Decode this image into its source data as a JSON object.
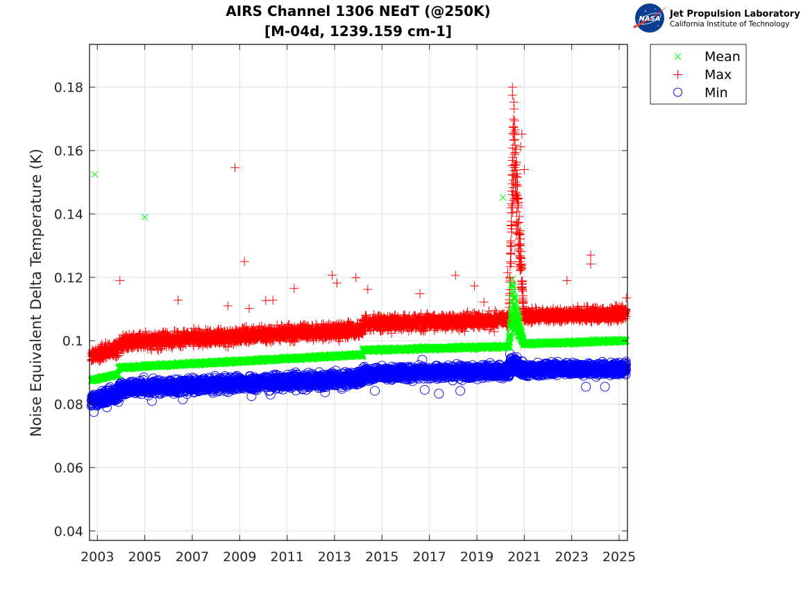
{
  "chart_data": {
    "type": "scatter",
    "title": [
      "AIRS Channel 1306 NEdT (@250K)",
      "[M-04d, 1239.159 cm-1]"
    ],
    "xlabel": "",
    "ylabel": "Noise Equivalent Delta Temperature (K)",
    "xlim": [
      2002.67,
      2025.35
    ],
    "ylim": [
      0.037,
      0.1935
    ],
    "xticks": [
      2003,
      2005,
      2007,
      2009,
      2011,
      2013,
      2015,
      2017,
      2019,
      2021,
      2023,
      2025
    ],
    "xtick_labels": [
      "2003",
      "2005",
      "2007",
      "2009",
      "2011",
      "2013",
      "2015",
      "2017",
      "2019",
      "2021",
      "2023",
      "2025"
    ],
    "yticks": [
      0.04,
      0.06,
      0.08,
      0.1,
      0.12,
      0.14,
      0.16,
      0.18
    ],
    "ytick_labels": [
      "0.04",
      "0.06",
      "0.08",
      "0.1",
      "0.12",
      "0.14",
      "0.16",
      "0.18"
    ],
    "grid": true,
    "legend_position": "outside-top-right",
    "series": [
      {
        "name": "Mean",
        "marker": "x",
        "color": "#00ff00",
        "segments": [
          {
            "x0": 2002.75,
            "x1": 2003.9,
            "y0": 0.0875,
            "y1": 0.0895,
            "spread": 0.0005
          },
          {
            "x0": 2003.9,
            "x1": 2014.2,
            "y0": 0.0915,
            "y1": 0.0956,
            "spread": 0.0005
          },
          {
            "x0": 2014.2,
            "x1": 2020.35,
            "y0": 0.097,
            "y1": 0.0982,
            "spread": 0.0005
          },
          {
            "x0": 2021.0,
            "x1": 2025.3,
            "y0": 0.099,
            "y1": 0.1,
            "spread": 0.0005
          }
        ],
        "spike": {
          "x0": 2020.35,
          "x1": 2021.0,
          "peak_x": 2020.5,
          "base": 0.0985,
          "peak": 0.122
        },
        "outliers": [
          {
            "x": 2002.9,
            "y": 0.1525
          },
          {
            "x": 2005.0,
            "y": 0.139
          },
          {
            "x": 2020.1,
            "y": 0.1452
          },
          {
            "x": 2023.9,
            "y": 0.1005
          },
          {
            "x": 2020.45,
            "y": 0.1175
          },
          {
            "x": 2020.5,
            "y": 0.1195
          }
        ]
      },
      {
        "name": "Max",
        "marker": "+",
        "color": "#ff0000",
        "segments": [
          {
            "x0": 2002.75,
            "x1": 2003.9,
            "y0": 0.0955,
            "y1": 0.0972,
            "spread": 0.0022
          },
          {
            "x0": 2003.9,
            "x1": 2014.2,
            "y0": 0.0995,
            "y1": 0.1035,
            "spread": 0.0022
          },
          {
            "x0": 2014.2,
            "x1": 2020.35,
            "y0": 0.1055,
            "y1": 0.1065,
            "spread": 0.0022
          },
          {
            "x0": 2021.0,
            "x1": 2025.3,
            "y0": 0.1077,
            "y1": 0.1085,
            "spread": 0.002
          }
        ],
        "spike": {
          "x0": 2020.35,
          "x1": 2021.0,
          "peak_x": 2020.55,
          "base": 0.106,
          "peak": 0.178
        },
        "outliers": [
          {
            "x": 2003.95,
            "y": 0.119
          },
          {
            "x": 2006.4,
            "y": 0.1128
          },
          {
            "x": 2008.8,
            "y": 0.1546
          },
          {
            "x": 2009.2,
            "y": 0.125
          },
          {
            "x": 2008.5,
            "y": 0.111
          },
          {
            "x": 2009.4,
            "y": 0.1102
          },
          {
            "x": 2010.1,
            "y": 0.1127
          },
          {
            "x": 2010.4,
            "y": 0.1128
          },
          {
            "x": 2011.3,
            "y": 0.1165
          },
          {
            "x": 2012.9,
            "y": 0.1207
          },
          {
            "x": 2013.1,
            "y": 0.1182
          },
          {
            "x": 2013.9,
            "y": 0.1199
          },
          {
            "x": 2014.4,
            "y": 0.1162
          },
          {
            "x": 2016.6,
            "y": 0.1148
          },
          {
            "x": 2018.1,
            "y": 0.1206
          },
          {
            "x": 2018.9,
            "y": 0.1173
          },
          {
            "x": 2019.3,
            "y": 0.1122
          },
          {
            "x": 2020.3,
            "y": 0.1215
          },
          {
            "x": 2020.5,
            "y": 0.18
          },
          {
            "x": 2020.5,
            "y": 0.1775
          },
          {
            "x": 2020.9,
            "y": 0.1652
          },
          {
            "x": 2020.85,
            "y": 0.1612
          },
          {
            "x": 2021.0,
            "y": 0.154
          },
          {
            "x": 2020.9,
            "y": 0.123
          },
          {
            "x": 2022.8,
            "y": 0.119
          },
          {
            "x": 2023.8,
            "y": 0.127
          },
          {
            "x": 2023.8,
            "y": 0.1242
          },
          {
            "x": 2025.3,
            "y": 0.1135
          },
          {
            "x": 2013.2,
            "y": 0.0998
          }
        ]
      },
      {
        "name": "Min",
        "marker": "o",
        "color": "#0000ff",
        "segments": [
          {
            "x0": 2002.75,
            "x1": 2003.9,
            "y0": 0.081,
            "y1": 0.083,
            "spread": 0.0022
          },
          {
            "x0": 2003.9,
            "x1": 2014.2,
            "y0": 0.085,
            "y1": 0.088,
            "spread": 0.002
          },
          {
            "x0": 2014.2,
            "x1": 2020.35,
            "y0": 0.0895,
            "y1": 0.0905,
            "spread": 0.0018
          },
          {
            "x0": 2021.0,
            "x1": 2025.3,
            "y0": 0.0908,
            "y1": 0.0912,
            "spread": 0.0018
          }
        ],
        "spike": {
          "x0": 2020.35,
          "x1": 2021.0,
          "peak_x": 2020.45,
          "base": 0.0905,
          "peak": 0.0935
        },
        "outliers": [
          {
            "x": 2002.85,
            "y": 0.0775
          },
          {
            "x": 2003.4,
            "y": 0.079
          },
          {
            "x": 2005.3,
            "y": 0.081
          },
          {
            "x": 2006.6,
            "y": 0.0815
          },
          {
            "x": 2009.5,
            "y": 0.0825
          },
          {
            "x": 2010.3,
            "y": 0.083
          },
          {
            "x": 2012.6,
            "y": 0.0837
          },
          {
            "x": 2014.7,
            "y": 0.0842
          },
          {
            "x": 2016.8,
            "y": 0.0845
          },
          {
            "x": 2017.4,
            "y": 0.0833
          },
          {
            "x": 2018.3,
            "y": 0.0842
          },
          {
            "x": 2016.7,
            "y": 0.094
          },
          {
            "x": 2023.6,
            "y": 0.0855
          },
          {
            "x": 2024.4,
            "y": 0.0855
          },
          {
            "x": 2020.4,
            "y": 0.0958
          }
        ]
      }
    ]
  },
  "legend": {
    "items": [
      {
        "label": "Mean",
        "marker": "x",
        "color": "#00ff00"
      },
      {
        "label": "Max",
        "marker": "+",
        "color": "#ff0000"
      },
      {
        "label": "Min",
        "marker": "o",
        "color": "#0000ff"
      }
    ]
  },
  "logo": {
    "org": "NASA",
    "title": "Jet Propulsion Laboratory",
    "subtitle": "California Institute of Technology",
    "colors": {
      "nasa_blue": "#0b3d91",
      "nasa_red": "#fc3d21"
    }
  }
}
